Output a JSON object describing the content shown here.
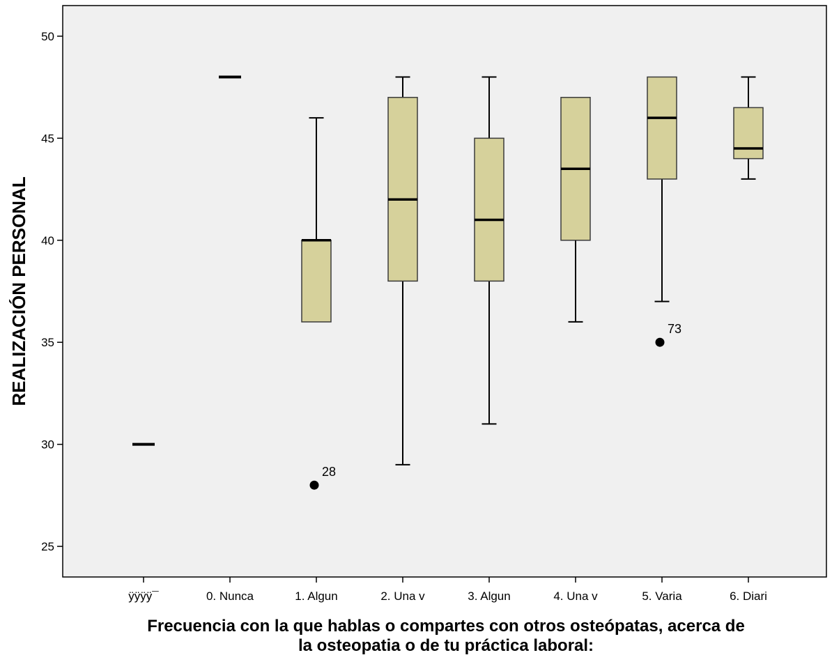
{
  "chart_data": {
    "type": "box",
    "ylabel": "REALIZACIÓN PERSONAL",
    "xlabel_lines": [
      "Frecuencia con la que hablas o compartes con otros osteópatas, acerca de",
      "la osteopatia o de tu práctica laboral:"
    ],
    "ylim": [
      23.5,
      51.5
    ],
    "yticks": [
      25,
      30,
      35,
      40,
      45,
      50
    ],
    "grid": false,
    "colors": {
      "plot_background": "#f0f0f0",
      "box_fill": "#d6d19b",
      "stroke": "#000000"
    },
    "categories": [
      "ÿÿÿÿ¯",
      "0. Nunca",
      "1. Algun",
      "2. Una v",
      "3. Algun",
      "4. Una v",
      "5. Varia",
      "6. Diari"
    ],
    "boxes": [
      {
        "min": 30,
        "q1": 30,
        "median": 30,
        "q3": 30,
        "max": 30,
        "outliers": []
      },
      {
        "min": 48,
        "q1": 48,
        "median": 48,
        "q3": 48,
        "max": 48,
        "outliers": []
      },
      {
        "min": 36,
        "q1": 36,
        "median": 40,
        "q3": 40,
        "max": 46,
        "outliers": [
          {
            "value": 28,
            "label": "28"
          }
        ]
      },
      {
        "min": 29,
        "q1": 38,
        "median": 42,
        "q3": 47,
        "max": 48,
        "outliers": []
      },
      {
        "min": 31,
        "q1": 38,
        "median": 41,
        "q3": 45,
        "max": 48,
        "outliers": []
      },
      {
        "min": 36,
        "q1": 40,
        "median": 43.5,
        "q3": 47,
        "max": 47,
        "outliers": []
      },
      {
        "min": 37,
        "q1": 43,
        "median": 46,
        "q3": 48,
        "max": 48,
        "outliers": [
          {
            "value": 35,
            "label": "73"
          }
        ]
      },
      {
        "min": 43,
        "q1": 44,
        "median": 44.5,
        "q3": 46.5,
        "max": 48,
        "outliers": []
      }
    ]
  }
}
